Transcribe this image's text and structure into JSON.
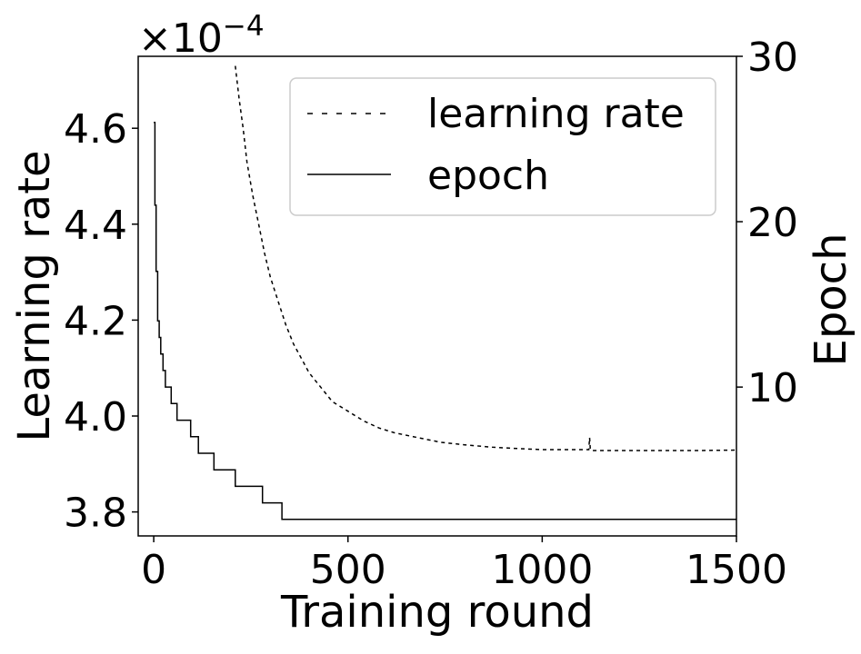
{
  "chart_data": {
    "type": "line",
    "xlabel": "Training round",
    "ylabel": "Learning rate",
    "ylabel_right": "Epoch",
    "multiplier": {
      "base": "×10",
      "exponent": "−4"
    },
    "xlim": [
      -40,
      1500
    ],
    "ylim": [
      3.75,
      4.75
    ],
    "ylim_right": [
      1,
      30
    ],
    "xticks": [
      0,
      500,
      1000,
      1500
    ],
    "yticks": [
      3.8,
      4.0,
      4.2,
      4.4,
      4.6
    ],
    "yticks_right": [
      10,
      20,
      30
    ],
    "ytick_labels": [
      "3.8",
      "4.0",
      "4.2",
      "4.4",
      "4.6"
    ],
    "legend_position": "upper right",
    "series": [
      {
        "name": "learning rate",
        "axis": "left",
        "style": "dashed",
        "color": "#000000",
        "x": [
          210,
          220,
          230,
          240,
          255,
          270,
          285,
          300,
          320,
          340,
          360,
          380,
          400,
          430,
          460,
          500,
          540,
          580,
          620,
          680,
          740,
          800,
          870,
          940,
          1000,
          1060,
          1110,
          1120,
          1122,
          1124,
          1130,
          1200,
          1300,
          1400,
          1500
        ],
        "y": [
          4.73,
          4.66,
          4.6,
          4.53,
          4.46,
          4.4,
          4.34,
          4.29,
          4.24,
          4.19,
          4.15,
          4.12,
          4.09,
          4.06,
          4.03,
          4.01,
          3.99,
          3.975,
          3.965,
          3.955,
          3.945,
          3.94,
          3.935,
          3.932,
          3.93,
          3.93,
          3.93,
          3.93,
          3.955,
          3.93,
          3.928,
          3.928,
          3.928,
          3.928,
          3.929
        ]
      },
      {
        "name": "epoch",
        "axis": "right",
        "style": "solid",
        "color": "#000000",
        "x": [
          0,
          3,
          6,
          10,
          14,
          18,
          24,
          30,
          45,
          60,
          95,
          115,
          155,
          210,
          280,
          330,
          1500
        ],
        "y": [
          26,
          21,
          17,
          14,
          13,
          12,
          11,
          10,
          9,
          8,
          7,
          6,
          5,
          4,
          3,
          2,
          2
        ],
        "step": true
      }
    ]
  }
}
